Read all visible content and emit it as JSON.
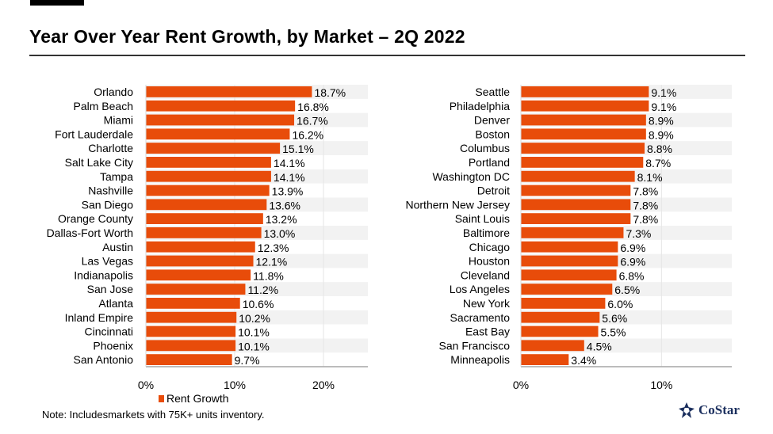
{
  "title": "Year Over Year Rent Growth, by Market  –  2Q 2022",
  "legend_label": "Rent Growth",
  "note": "Note: Includesmarkets with 75K+ units inventory.",
  "logo_text": "CoStar",
  "colors": {
    "bar": "#e84c0a",
    "band": "#f2f2f2"
  },
  "chart_data": [
    {
      "type": "bar",
      "orientation": "horizontal",
      "series_name": "Rent Growth",
      "categories": [
        "Orlando",
        "Palm Beach",
        "Miami",
        "Fort Lauderdale",
        "Charlotte",
        "Salt Lake City",
        "Tampa",
        "Nashville",
        "San Diego",
        "Orange County",
        "Dallas-Fort Worth",
        "Austin",
        "Las Vegas",
        "Indianapolis",
        "San Jose",
        "Atlanta",
        "Inland Empire",
        "Cincinnati",
        "Phoenix",
        "San Antonio"
      ],
      "values": [
        18.7,
        16.8,
        16.7,
        16.2,
        15.1,
        14.1,
        14.1,
        13.9,
        13.6,
        13.2,
        13.0,
        12.3,
        12.1,
        11.8,
        11.2,
        10.6,
        10.2,
        10.1,
        10.1,
        9.7
      ],
      "xlim": [
        0,
        25
      ],
      "ticks": [
        0,
        10,
        20
      ],
      "tick_labels": [
        "0%",
        "10%",
        "20%"
      ]
    },
    {
      "type": "bar",
      "orientation": "horizontal",
      "series_name": "Rent Growth",
      "categories": [
        "Seattle",
        "Philadelphia",
        "Denver",
        "Boston",
        "Columbus",
        "Portland",
        "Washington DC",
        "Detroit",
        "Northern New Jersey",
        "Saint Louis",
        "Baltimore",
        "Chicago",
        "Houston",
        "Cleveland",
        "Los Angeles",
        "New York",
        "Sacramento",
        "East Bay",
        "San Francisco",
        "Minneapolis"
      ],
      "values": [
        9.1,
        9.1,
        8.9,
        8.9,
        8.8,
        8.7,
        8.1,
        7.8,
        7.8,
        7.8,
        7.3,
        6.9,
        6.9,
        6.8,
        6.5,
        6.0,
        5.6,
        5.5,
        4.5,
        3.4
      ],
      "xlim": [
        0,
        15
      ],
      "ticks": [
        0,
        10
      ],
      "tick_labels": [
        "0%",
        "10%"
      ]
    }
  ]
}
